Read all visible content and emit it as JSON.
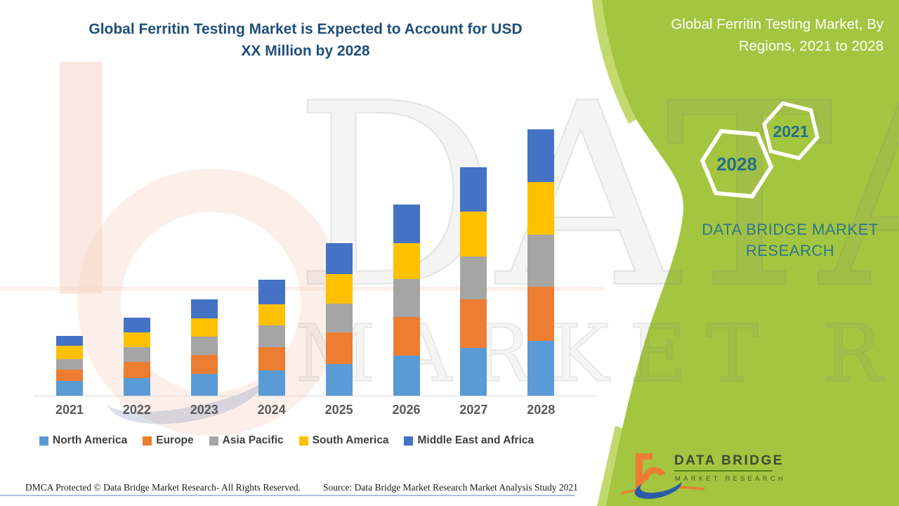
{
  "main_title": {
    "line1": "Global Ferritin Testing Market is Expected to Account for USD",
    "line2": "XX Million by 2028"
  },
  "side_panel": {
    "title_line1": "Global Ferritin Testing Market, By",
    "title_line2": "Regions, 2021 to 2028",
    "hexagons": [
      {
        "label": "2028"
      },
      {
        "label": "2021"
      }
    ],
    "brand_line1": "DATA BRIDGE MARKET",
    "brand_line2": "RESEARCH"
  },
  "watermark": {
    "line1": "DATA BRIDGE",
    "line2": "MARKET RESEARCH"
  },
  "logo": {
    "title": "DATA BRIDGE",
    "subtitle": "MARKET RESEARCH"
  },
  "footer": {
    "left": "DMCA Protected © Data Bridge Market Research- All Rights Reserved.",
    "right": "Source: Data Bridge Market Research Market Analysis Study 2021"
  },
  "colors": {
    "panel_green": "#A3C53F",
    "panel_green_light": "#C3D96E",
    "title_navy": "#1F4E79",
    "brand_teal": "#2E7889",
    "hex_year_teal": "#25708A",
    "label_gray": "#595959",
    "legend_text": "#404040",
    "axis_line": "#D9D9D9",
    "footer_text": "#1A1A1A",
    "logo_orange": "#ED7D31",
    "logo_blue": "#2B5CA8",
    "watermark_peach": "#F7D4C4"
  },
  "chart_data": {
    "type": "bar",
    "stacked": true,
    "title": "Global Ferritin Testing Market, By Regions, 2021 to 2028",
    "xlabel": "",
    "ylabel": "",
    "units_note": "USD Million (actual values undisclosed as 'XX'; values below are relative estimates from bar heights)",
    "grid": false,
    "value_axis_visible": false,
    "legend_position": "bottom",
    "categories": [
      "2021",
      "2022",
      "2023",
      "2024",
      "2025",
      "2026",
      "2027",
      "2028"
    ],
    "series": [
      {
        "name": "North America",
        "color": "#5B9BD5",
        "values": [
          21,
          25,
          31,
          36,
          45,
          57,
          68,
          78
        ]
      },
      {
        "name": "Europe",
        "color": "#ED7D31",
        "values": [
          16,
          23,
          27,
          33,
          45,
          55,
          69,
          77
        ]
      },
      {
        "name": "Asia Pacific",
        "color": "#A5A5A5",
        "values": [
          15,
          21,
          26,
          31,
          41,
          54,
          61,
          74
        ]
      },
      {
        "name": "South America",
        "color": "#FFC000",
        "values": [
          19,
          21,
          26,
          30,
          42,
          51,
          64,
          75
        ]
      },
      {
        "name": "Middle East and Africa",
        "color": "#4472C4",
        "values": [
          14,
          21,
          27,
          35,
          44,
          55,
          63,
          75
        ]
      }
    ],
    "totals_estimated": [
      85,
      111,
      137,
      165,
      217,
      272,
      325,
      379
    ]
  }
}
